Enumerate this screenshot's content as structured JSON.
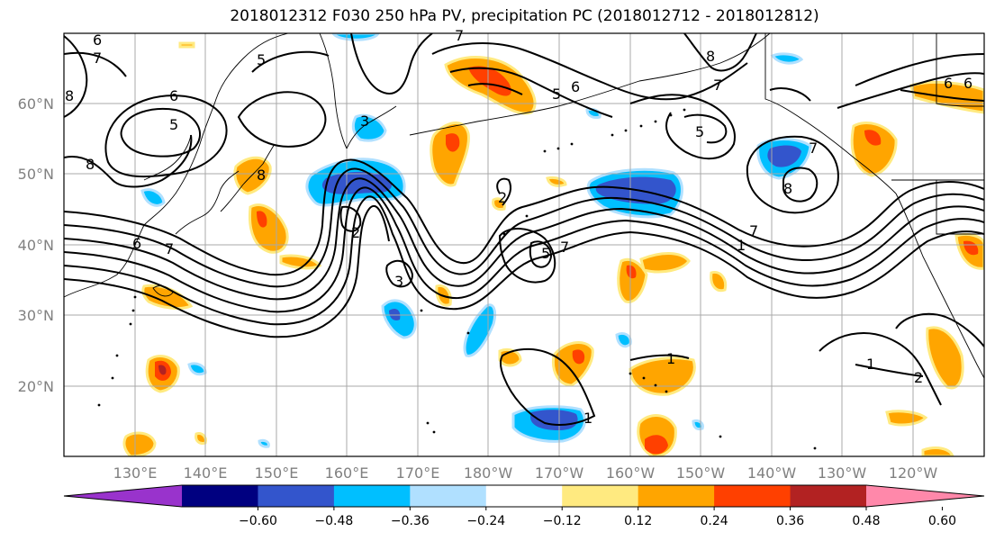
{
  "title": "2018012312 F030 250 hPa PV, precipitation PC (2018012712 - 2018012812)",
  "map": {
    "lat_ticks": [
      {
        "label": "60°N",
        "lat": 60
      },
      {
        "label": "50°N",
        "lat": 50
      },
      {
        "label": "40°N",
        "lat": 40
      },
      {
        "label": "30°N",
        "lat": 30
      },
      {
        "label": "20°N",
        "lat": 20
      }
    ],
    "lon_ticks": [
      "130°E",
      "140°E",
      "150°E",
      "160°E",
      "170°E",
      "180°W",
      "170°W",
      "160°W",
      "150°W",
      "140°W",
      "130°W",
      "120°W"
    ],
    "pv_contour_labels": [
      "6",
      "7",
      "8",
      "5",
      "6",
      "8",
      "7",
      "6",
      "5",
      "8",
      "7",
      "5",
      "8",
      "7",
      "6",
      "8",
      "6",
      "5",
      "2",
      "2",
      "5",
      "7",
      "3",
      "1",
      "1",
      "6",
      "7",
      "3",
      "7",
      "1",
      "1",
      "2"
    ]
  },
  "colorbar": {
    "colors": [
      "#9933cc",
      "#000080",
      "#3355cc",
      "#00bfff",
      "#b0e0ff",
      "#ffffff",
      "#ffea80",
      "#ffa500",
      "#ff4000",
      "#b22222",
      "#ff88aa"
    ],
    "tick_labels": [
      "−0.60",
      "−0.48",
      "−0.36",
      "−0.24",
      "−0.12",
      "0.12",
      "0.24",
      "0.36",
      "0.48",
      "0.60"
    ]
  }
}
